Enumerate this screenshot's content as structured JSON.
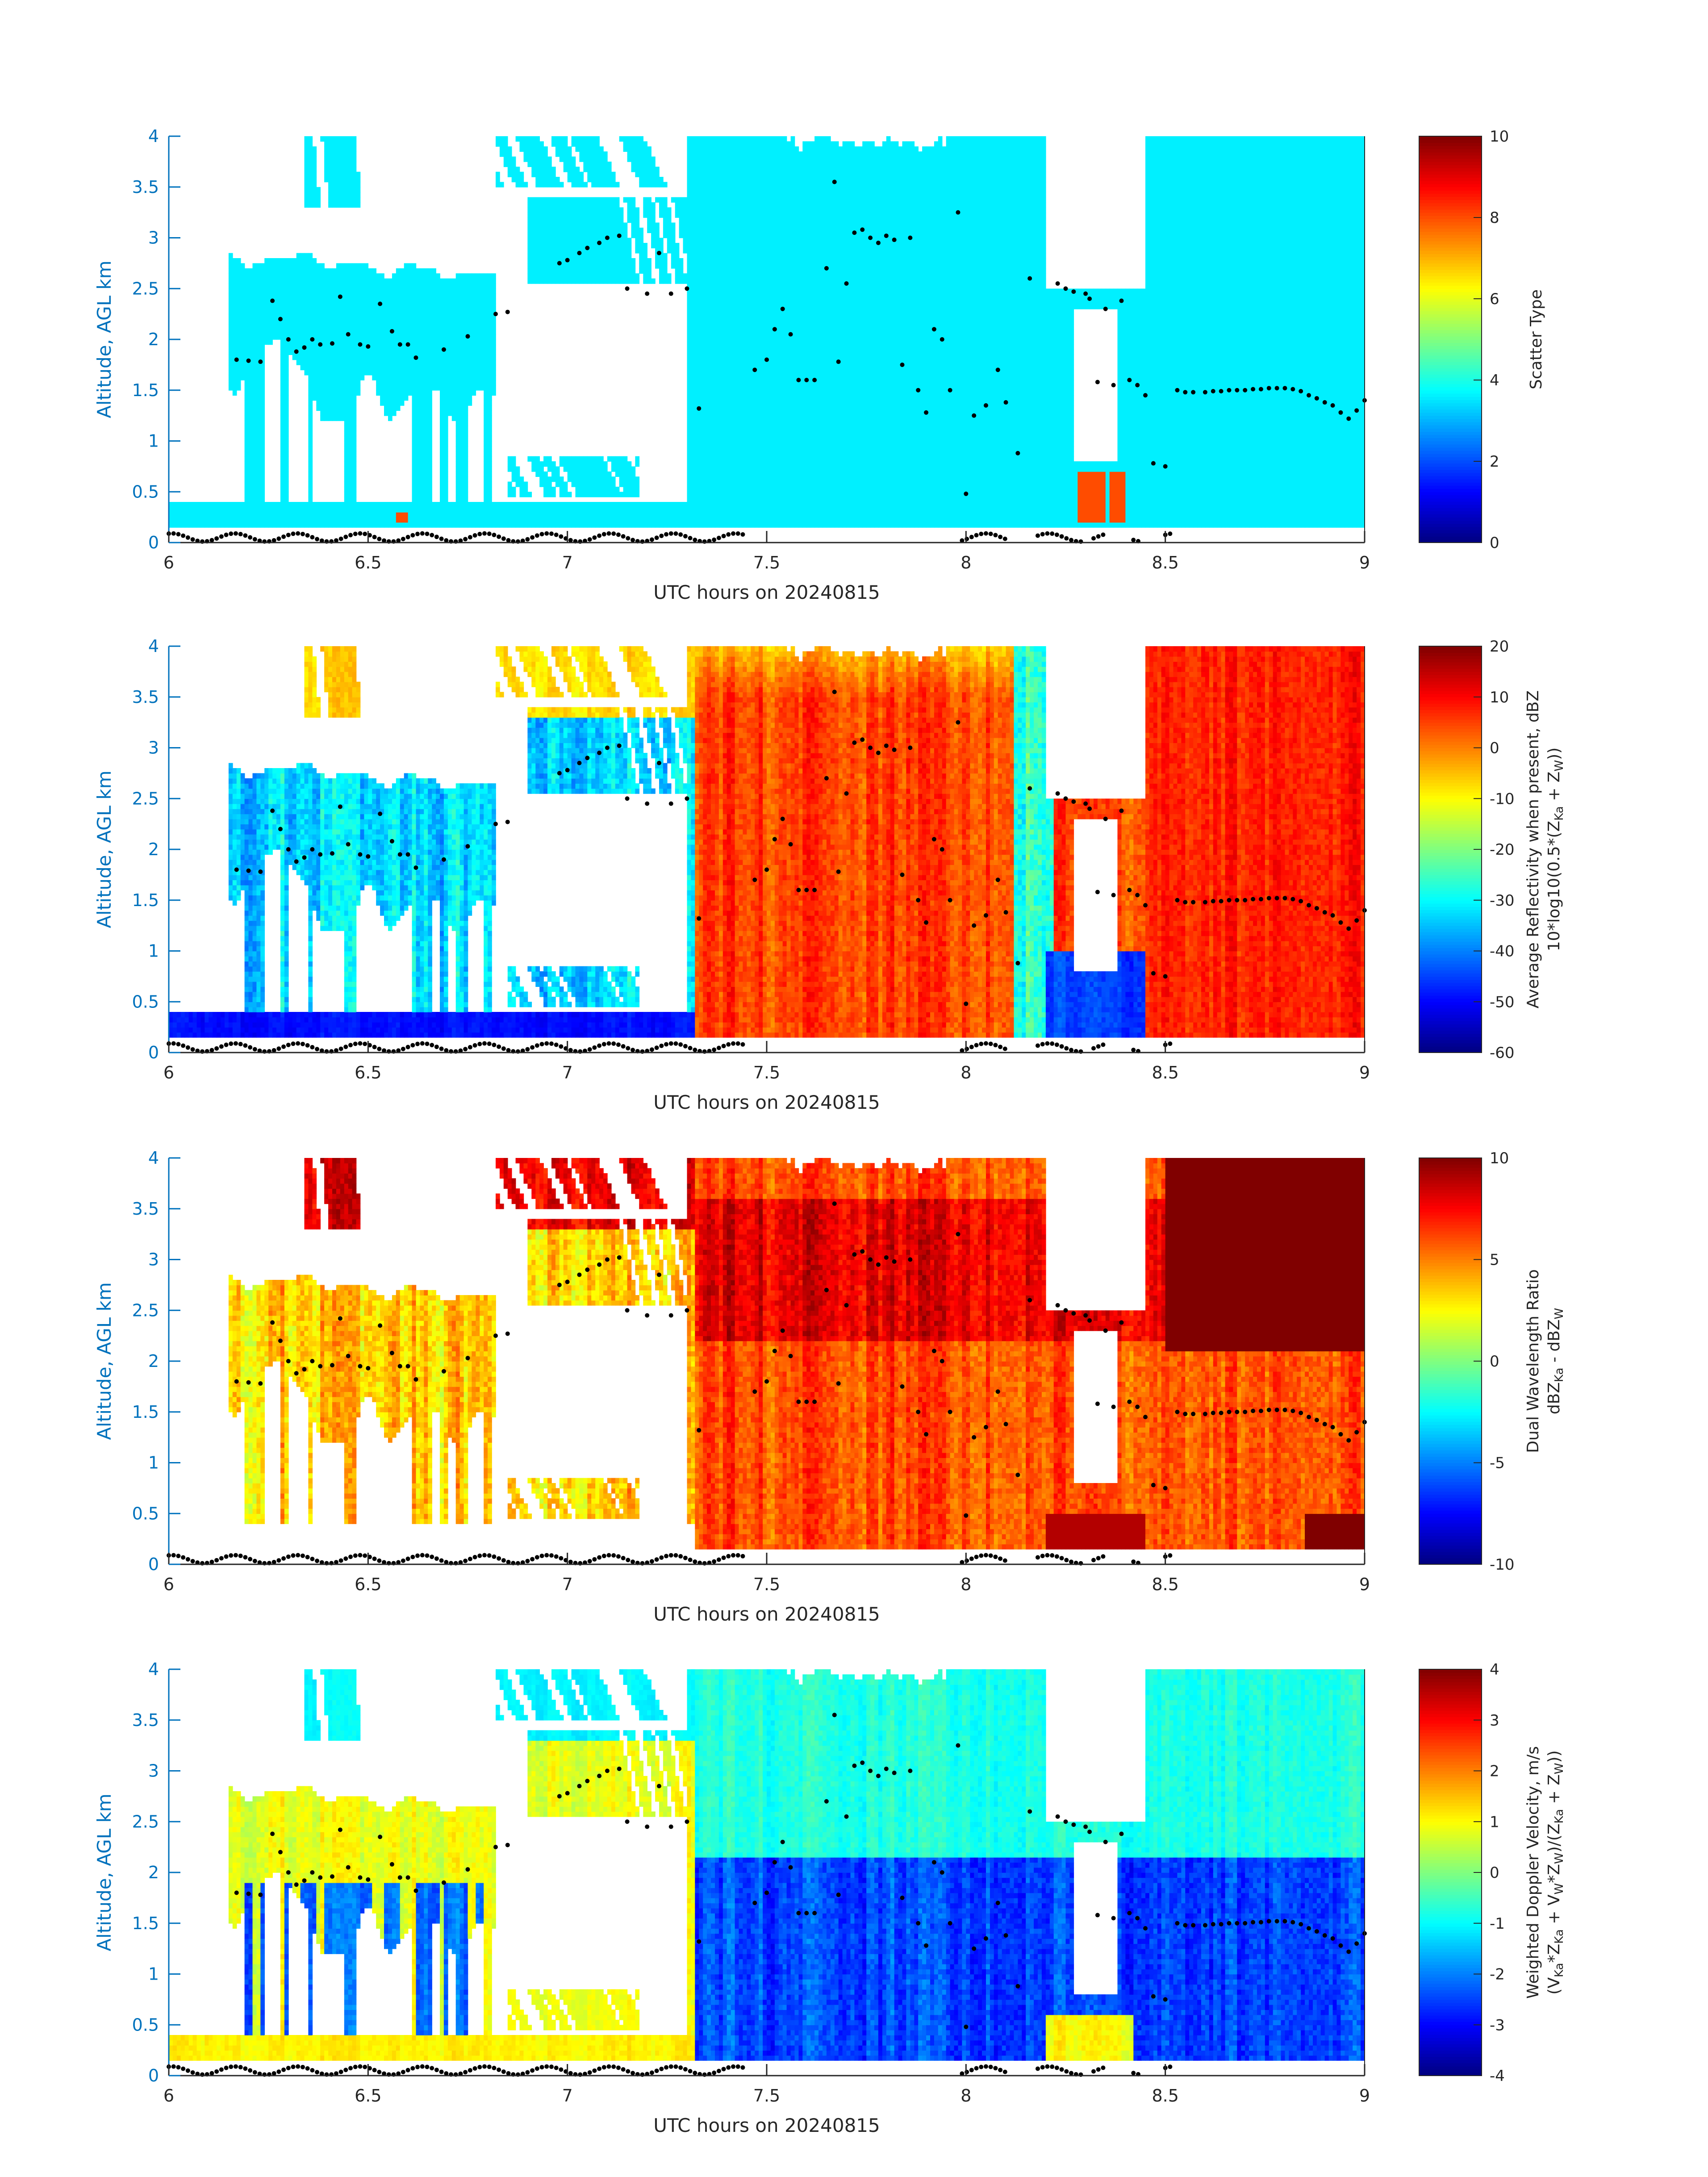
{
  "chart_data": [
    {
      "type": "heatmap",
      "xlabel": "UTC hours on 20240815",
      "ylabel": "Altitude, AGL km",
      "xlim": [
        6,
        9
      ],
      "ylim": [
        0,
        4
      ],
      "xticks": [
        "6",
        "6.5",
        "7",
        "7.5",
        "8",
        "8.5",
        "9"
      ],
      "yticks": [
        "0",
        "0.5",
        "1",
        "1.5",
        "2",
        "2.5",
        "3",
        "3.5",
        "4"
      ],
      "colorbar": {
        "label": "Scatter Type",
        "range": [
          0,
          10
        ],
        "ticks": [
          "0",
          "2",
          "4",
          "6",
          "8",
          "10"
        ],
        "colormap": "jet"
      },
      "field": "scatter_type"
    },
    {
      "type": "heatmap",
      "xlabel": "UTC hours on 20240815",
      "ylabel": "Altitude, AGL km",
      "xlim": [
        6,
        9
      ],
      "ylim": [
        0,
        4
      ],
      "xticks": [
        "6",
        "6.5",
        "7",
        "7.5",
        "8",
        "8.5",
        "9"
      ],
      "yticks": [
        "0",
        "0.5",
        "1",
        "1.5",
        "2",
        "2.5",
        "3",
        "3.5",
        "4"
      ],
      "colorbar": {
        "label": "Average Reflectivity when present, dBZ",
        "label2_parts": [
          "10*log10(0.5*(Z",
          "Ka",
          " + Z",
          "W",
          "))"
        ],
        "range": [
          -60,
          20
        ],
        "ticks": [
          "-60",
          "-50",
          "-40",
          "-30",
          "-20",
          "-10",
          "0",
          "10",
          "20"
        ],
        "colormap": "jet"
      },
      "field": "reflectivity"
    },
    {
      "type": "heatmap",
      "xlabel": "UTC hours on 20240815",
      "ylabel": "Altitude, AGL km",
      "xlim": [
        6,
        9
      ],
      "ylim": [
        0,
        4
      ],
      "xticks": [
        "6",
        "6.5",
        "7",
        "7.5",
        "8",
        "8.5",
        "9"
      ],
      "yticks": [
        "0",
        "0.5",
        "1",
        "1.5",
        "2",
        "2.5",
        "3",
        "3.5",
        "4"
      ],
      "colorbar": {
        "label": "Dual Wavelength Ratio",
        "label2_parts": [
          "dBZ",
          "Ka",
          " - dBZ",
          "W",
          ""
        ],
        "range": [
          -10,
          10
        ],
        "ticks": [
          "-10",
          "-5",
          "0",
          "5",
          "10"
        ],
        "colormap": "jet"
      },
      "field": "dwr"
    },
    {
      "type": "heatmap",
      "xlabel": "UTC hours on 20240815",
      "ylabel": "Altitude, AGL km",
      "xlim": [
        6,
        9
      ],
      "ylim": [
        0,
        4
      ],
      "xticks": [
        "6",
        "6.5",
        "7",
        "7.5",
        "8",
        "8.5",
        "9"
      ],
      "yticks": [
        "0",
        "0.5",
        "1",
        "1.5",
        "2",
        "2.5",
        "3",
        "3.5",
        "4"
      ],
      "colorbar": {
        "label": "Weighted Doppler Velocity, m/s",
        "label2_parts": [
          "(V",
          "Ka",
          "*Z",
          "Ka",
          " + V",
          "W",
          "*Z",
          "W",
          ")/(Z",
          "Ka",
          " + Z",
          "W",
          "))"
        ],
        "range": [
          -4,
          4
        ],
        "ticks": [
          "-4",
          "-3",
          "-2",
          "-1",
          "0",
          "1",
          "2",
          "3",
          "4"
        ],
        "colormap": "jet"
      },
      "field": "velocity"
    }
  ],
  "cloud_base_dots": [
    [
      6.17,
      1.8
    ],
    [
      6.2,
      1.79
    ],
    [
      6.23,
      1.78
    ],
    [
      6.26,
      2.38
    ],
    [
      6.28,
      2.2
    ],
    [
      6.3,
      2.0
    ],
    [
      6.32,
      1.88
    ],
    [
      6.34,
      1.92
    ],
    [
      6.36,
      2.0
    ],
    [
      6.38,
      1.95
    ],
    [
      6.41,
      1.96
    ],
    [
      6.43,
      2.42
    ],
    [
      6.45,
      2.05
    ],
    [
      6.48,
      1.95
    ],
    [
      6.5,
      1.93
    ],
    [
      6.53,
      2.35
    ],
    [
      6.56,
      2.08
    ],
    [
      6.58,
      1.95
    ],
    [
      6.6,
      1.95
    ],
    [
      6.62,
      1.82
    ],
    [
      6.69,
      1.9
    ],
    [
      6.75,
      2.03
    ],
    [
      6.82,
      2.25
    ],
    [
      6.85,
      2.27
    ],
    [
      6.98,
      2.75
    ],
    [
      7.0,
      2.78
    ],
    [
      7.03,
      2.85
    ],
    [
      7.05,
      2.9
    ],
    [
      7.08,
      2.95
    ],
    [
      7.1,
      3.0
    ],
    [
      7.13,
      3.02
    ],
    [
      7.15,
      2.5
    ],
    [
      7.2,
      2.45
    ],
    [
      7.23,
      2.85
    ],
    [
      7.26,
      2.45
    ],
    [
      7.3,
      2.5
    ],
    [
      7.33,
      1.32
    ],
    [
      7.47,
      1.7
    ],
    [
      7.5,
      1.8
    ],
    [
      7.52,
      2.1
    ],
    [
      7.54,
      2.3
    ],
    [
      7.56,
      2.05
    ],
    [
      7.58,
      1.6
    ],
    [
      7.6,
      1.6
    ],
    [
      7.62,
      1.6
    ],
    [
      7.65,
      2.7
    ],
    [
      7.67,
      3.55
    ],
    [
      7.68,
      1.78
    ],
    [
      7.7,
      2.55
    ],
    [
      7.72,
      3.05
    ],
    [
      7.74,
      3.08
    ],
    [
      7.76,
      3.0
    ],
    [
      7.78,
      2.95
    ],
    [
      7.8,
      3.02
    ],
    [
      7.82,
      2.98
    ],
    [
      7.84,
      1.75
    ],
    [
      7.86,
      3.0
    ],
    [
      7.88,
      1.5
    ],
    [
      7.9,
      1.28
    ],
    [
      7.92,
      2.1
    ],
    [
      7.94,
      2.0
    ],
    [
      7.96,
      1.5
    ],
    [
      7.98,
      3.25
    ],
    [
      8.0,
      0.48
    ],
    [
      8.02,
      1.25
    ],
    [
      8.05,
      1.35
    ],
    [
      8.08,
      1.7
    ],
    [
      8.1,
      1.38
    ],
    [
      8.13,
      0.88
    ],
    [
      8.16,
      2.6
    ],
    [
      8.23,
      2.55
    ],
    [
      8.25,
      2.5
    ],
    [
      8.27,
      2.47
    ],
    [
      8.3,
      2.45
    ],
    [
      8.31,
      2.4
    ],
    [
      8.33,
      1.58
    ],
    [
      8.35,
      2.3
    ],
    [
      8.37,
      1.55
    ],
    [
      8.39,
      2.38
    ],
    [
      8.41,
      1.6
    ],
    [
      8.43,
      1.55
    ],
    [
      8.45,
      1.45
    ],
    [
      8.47,
      0.78
    ],
    [
      8.5,
      0.75
    ],
    [
      8.53,
      1.5
    ],
    [
      8.55,
      1.48
    ],
    [
      8.57,
      1.48
    ],
    [
      8.6,
      1.48
    ],
    [
      8.62,
      1.49
    ],
    [
      8.64,
      1.49
    ],
    [
      8.66,
      1.5
    ],
    [
      8.68,
      1.5
    ],
    [
      8.7,
      1.5
    ],
    [
      8.72,
      1.51
    ],
    [
      8.74,
      1.51
    ],
    [
      8.76,
      1.52
    ],
    [
      8.78,
      1.52
    ],
    [
      8.8,
      1.52
    ],
    [
      8.82,
      1.51
    ],
    [
      8.84,
      1.49
    ],
    [
      8.86,
      1.45
    ],
    [
      8.88,
      1.42
    ],
    [
      8.9,
      1.38
    ],
    [
      8.92,
      1.35
    ],
    [
      8.94,
      1.28
    ],
    [
      8.96,
      1.22
    ],
    [
      8.98,
      1.3
    ],
    [
      9.0,
      1.4
    ]
  ],
  "ground_dots_x_ranges": [
    [
      6.0,
      7.45
    ],
    [
      7.99,
      8.11
    ],
    [
      8.18,
      8.3
    ],
    [
      8.32,
      8.35
    ],
    [
      8.42,
      8.44
    ],
    [
      8.5,
      8.52
    ]
  ]
}
